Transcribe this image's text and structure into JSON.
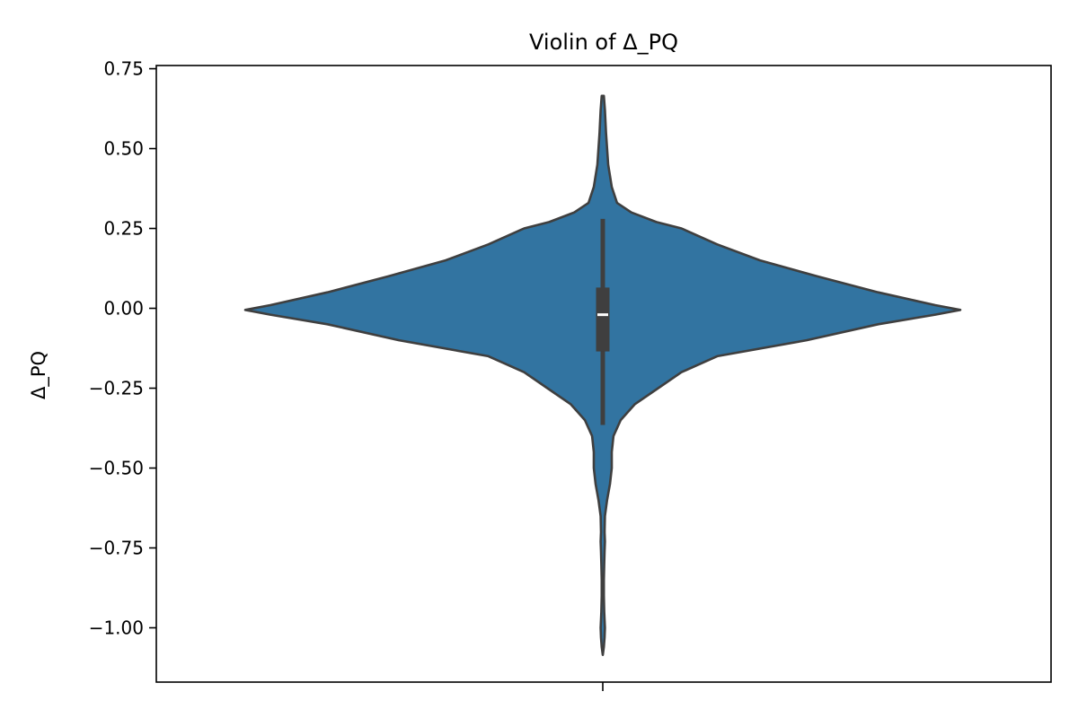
{
  "chart_data": {
    "type": "violin",
    "title": "Violin of Δ_PQ",
    "xlabel": "",
    "ylabel": "Δ_PQ",
    "ylim": [
      -1.17,
      0.76
    ],
    "yticks": [
      0.75,
      0.5,
      0.25,
      0.0,
      -0.25,
      -0.5,
      -0.75,
      -1.0
    ],
    "ytick_labels": [
      "0.75",
      "0.50",
      "0.25",
      "0.00",
      "−0.25",
      "−0.50",
      "−0.75",
      "−1.00"
    ],
    "grid": false,
    "fill_color": "#3274a1",
    "outline_color": "#3f3f3f",
    "box_color": "#3f3f3f",
    "median_color": "#ffffff",
    "violin": {
      "min": -1.085,
      "max": 0.665,
      "density_profile": [
        [
          0.665,
          0.003
        ],
        [
          0.62,
          0.006
        ],
        [
          0.55,
          0.009
        ],
        [
          0.45,
          0.015
        ],
        [
          0.38,
          0.025
        ],
        [
          0.33,
          0.04
        ],
        [
          0.3,
          0.08
        ],
        [
          0.27,
          0.15
        ],
        [
          0.25,
          0.22
        ],
        [
          0.2,
          0.32
        ],
        [
          0.15,
          0.44
        ],
        [
          0.1,
          0.6
        ],
        [
          0.05,
          0.77
        ],
        [
          0.01,
          0.93
        ],
        [
          -0.005,
          1.0
        ],
        [
          -0.02,
          0.93
        ],
        [
          -0.05,
          0.77
        ],
        [
          -0.1,
          0.57
        ],
        [
          -0.15,
          0.32
        ],
        [
          -0.2,
          0.22
        ],
        [
          -0.25,
          0.155
        ],
        [
          -0.3,
          0.09
        ],
        [
          -0.35,
          0.05
        ],
        [
          -0.4,
          0.03
        ],
        [
          -0.45,
          0.025
        ],
        [
          -0.5,
          0.025
        ],
        [
          -0.55,
          0.02
        ],
        [
          -0.6,
          0.012
        ],
        [
          -0.65,
          0.006
        ],
        [
          -0.7,
          0.005
        ],
        [
          -0.73,
          0.006
        ],
        [
          -0.76,
          0.005
        ],
        [
          -0.8,
          0.004
        ],
        [
          -0.85,
          0.003
        ],
        [
          -0.9,
          0.003
        ],
        [
          -0.95,
          0.004
        ],
        [
          -1.0,
          0.006
        ],
        [
          -1.03,
          0.005
        ],
        [
          -1.06,
          0.003
        ],
        [
          -1.085,
          0.0
        ]
      ]
    },
    "box": {
      "whisker_low": -0.365,
      "q1": -0.135,
      "median": -0.02,
      "q3": 0.065,
      "whisker_high": 0.28
    }
  }
}
